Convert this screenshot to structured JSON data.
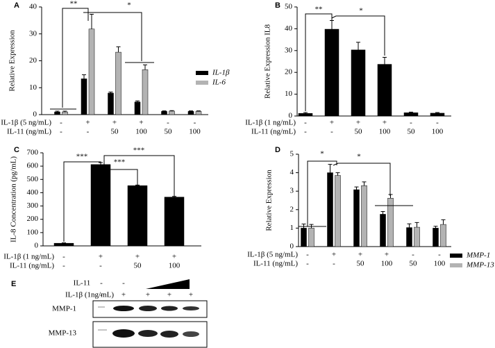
{
  "chart_data": [
    {
      "type": "bar",
      "panel": "A",
      "y_label": "Relative Expression",
      "ylim": [
        0,
        40
      ],
      "yticks": [
        0,
        10,
        20,
        30,
        40
      ],
      "categories": [
        null,
        null,
        null,
        null,
        null,
        null
      ],
      "series": [
        {
          "name": "IL-1β",
          "color": "#000000",
          "values": [
            1,
            13.3,
            8,
            4.7,
            1.2,
            1.2
          ],
          "errors": [
            0.3,
            1.5,
            0.4,
            0.4,
            0.2,
            0.2
          ]
        },
        {
          "name": "IL-6",
          "color": "#b3b3b3",
          "values": [
            1,
            31.8,
            23.2,
            16.7,
            1.3,
            1.2
          ],
          "errors": [
            0.3,
            5.5,
            2,
            1.8,
            0.2,
            0.2
          ]
        }
      ],
      "row_labels": [
        {
          "label": "IL-1β (5 ng/mL)",
          "values": [
            "-",
            "+",
            "+",
            "+",
            "-",
            "-"
          ]
        },
        {
          "label": "IL-11 (ng/mL)",
          "values": [
            "-",
            "-",
            "50",
            "100",
            "50",
            "100"
          ]
        }
      ],
      "annotations": [
        "**",
        "*"
      ]
    },
    {
      "type": "bar",
      "panel": "B",
      "y_label": "Relative Expression IL8",
      "ylim": [
        0,
        50
      ],
      "yticks": [
        0,
        10,
        20,
        30,
        40,
        50
      ],
      "categories": [
        null,
        null,
        null,
        null,
        null,
        null
      ],
      "series": [
        {
          "color": "#000000",
          "values": [
            1.2,
            39.8,
            30.3,
            23.7,
            1.5,
            1.3
          ],
          "errors": [
            0.4,
            4,
            3.5,
            3.2,
            0.3,
            0.3
          ]
        }
      ],
      "row_labels": [
        {
          "label": "IL-1β (1 ng/mL)",
          "values": [
            "-",
            "+",
            "+",
            "+",
            "-",
            "-"
          ]
        },
        {
          "label": "IL-11 (ng/mL)",
          "values": [
            "-",
            "-",
            "50",
            "100",
            "50",
            "100"
          ]
        }
      ],
      "annotations": [
        "**",
        "*"
      ]
    },
    {
      "type": "bar",
      "panel": "C",
      "y_label": "IL-8 Concentration (pg/mL)",
      "ylim": [
        0,
        700
      ],
      "yticks": [
        0,
        100,
        200,
        300,
        400,
        500,
        600,
        700
      ],
      "categories": [
        null,
        null,
        null,
        null
      ],
      "series": [
        {
          "color": "#000000",
          "values": [
            20,
            612,
            453,
            367
          ],
          "errors": [
            3,
            15,
            5,
            5
          ]
        }
      ],
      "row_labels": [
        {
          "label": "IL-1β (1 ng/mL)",
          "values": [
            "-",
            "+",
            "+",
            "+"
          ]
        },
        {
          "label": "IL-11 (ng/mL)",
          "values": [
            "-",
            "-",
            "50",
            "100"
          ]
        }
      ],
      "annotations": [
        "***",
        "***",
        "***"
      ]
    },
    {
      "type": "bar",
      "panel": "D",
      "y_label": "Relative Expression",
      "ylim": [
        0,
        5
      ],
      "yticks": [
        0,
        1,
        2,
        3,
        4,
        5
      ],
      "categories": [
        null,
        null,
        null,
        null,
        null,
        null
      ],
      "series": [
        {
          "name": "MMP-1",
          "color": "#000000",
          "values": [
            1,
            4,
            3.08,
            1.75,
            1.03,
            1
          ],
          "errors": [
            0.22,
            0.45,
            0.15,
            0.15,
            0.2,
            0.1
          ]
        },
        {
          "name": "MMP-13",
          "color": "#b3b3b3",
          "values": [
            1,
            3.85,
            3.3,
            2.62,
            1.05,
            1.2
          ],
          "errors": [
            0.2,
            0.15,
            0.2,
            0.2,
            0.25,
            0.25
          ]
        }
      ],
      "row_labels": [
        {
          "label": "IL-1β (5 ng/mL)",
          "values": [
            "-",
            "+",
            "+",
            "+",
            "-",
            "-"
          ]
        },
        {
          "label": "IL-11 (ng/mL)",
          "values": [
            "-",
            "-",
            "50",
            "100",
            "50",
            "100"
          ]
        }
      ],
      "annotations": [
        "*",
        "*"
      ]
    }
  ],
  "blot": {
    "panel": "E",
    "il11_label": "IL-11",
    "il11_lanes": [
      "-",
      "-"
    ],
    "il1b_label": "IL-1β (1ng/mL)",
    "il1b_lanes": [
      "-",
      "+",
      "+",
      "+",
      "+"
    ],
    "rows": [
      "MMP-1",
      "MMP-13"
    ]
  }
}
